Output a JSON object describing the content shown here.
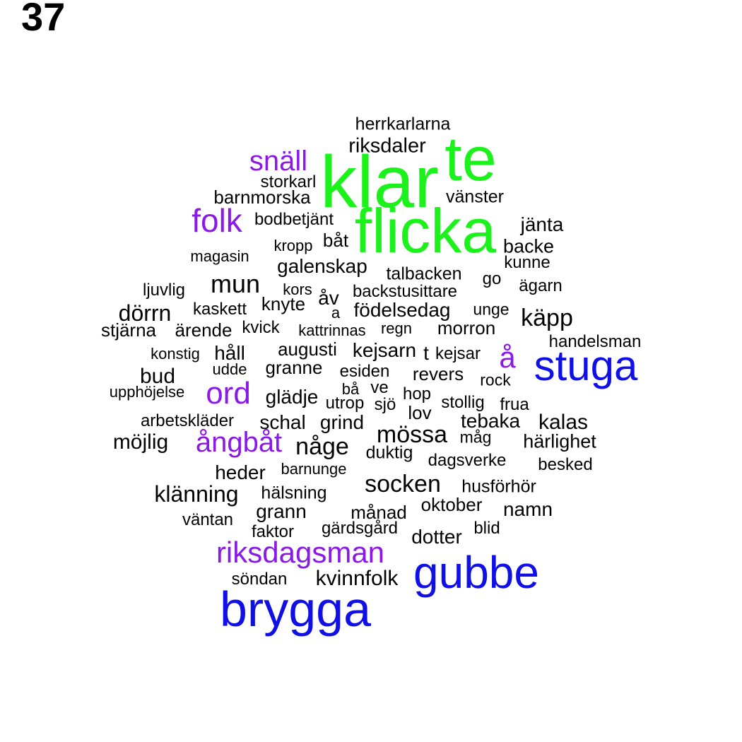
{
  "page_number": "37",
  "colors": {
    "black": "#000000",
    "purple": "#8A18E6",
    "green": "#1BF21B",
    "blue": "#1010E6"
  },
  "words": [
    {
      "text": "klar",
      "color": "green"
    },
    {
      "text": "flicka",
      "color": "green"
    },
    {
      "text": "te",
      "color": "green"
    },
    {
      "text": "brygga",
      "color": "blue"
    },
    {
      "text": "gubbe",
      "color": "blue"
    },
    {
      "text": "stuga",
      "color": "blue"
    },
    {
      "text": "riksdagsman",
      "color": "purple"
    },
    {
      "text": "ångbåt",
      "color": "purple"
    },
    {
      "text": "ord",
      "color": "purple"
    },
    {
      "text": "folk",
      "color": "purple"
    },
    {
      "text": "snäll",
      "color": "purple"
    },
    {
      "text": "å",
      "color": "purple"
    },
    {
      "text": "herrkarlarna",
      "color": "black"
    },
    {
      "text": "riksdaler",
      "color": "black"
    },
    {
      "text": "storkarl",
      "color": "black"
    },
    {
      "text": "barnmorska",
      "color": "black"
    },
    {
      "text": "vänster",
      "color": "black"
    },
    {
      "text": "bodbetjänt",
      "color": "black"
    },
    {
      "text": "jänta",
      "color": "black"
    },
    {
      "text": "båt",
      "color": "black"
    },
    {
      "text": "kropp",
      "color": "black"
    },
    {
      "text": "backe",
      "color": "black"
    },
    {
      "text": "magasin",
      "color": "black"
    },
    {
      "text": "kunne",
      "color": "black"
    },
    {
      "text": "galenskap",
      "color": "black"
    },
    {
      "text": "talbacken",
      "color": "black"
    },
    {
      "text": "go",
      "color": "black"
    },
    {
      "text": "mun",
      "color": "black"
    },
    {
      "text": "ägarn",
      "color": "black"
    },
    {
      "text": "ljuvlig",
      "color": "black"
    },
    {
      "text": "kors",
      "color": "black"
    },
    {
      "text": "backstusittare",
      "color": "black"
    },
    {
      "text": "åv",
      "color": "black"
    },
    {
      "text": "knyte",
      "color": "black"
    },
    {
      "text": "dörrn",
      "color": "black"
    },
    {
      "text": "kaskett",
      "color": "black"
    },
    {
      "text": "a",
      "color": "black"
    },
    {
      "text": "födelsedag",
      "color": "black"
    },
    {
      "text": "unge",
      "color": "black"
    },
    {
      "text": "käpp",
      "color": "black"
    },
    {
      "text": "stjärna",
      "color": "black"
    },
    {
      "text": "ärende",
      "color": "black"
    },
    {
      "text": "kvick",
      "color": "black"
    },
    {
      "text": "kattrinnas",
      "color": "black"
    },
    {
      "text": "regn",
      "color": "black"
    },
    {
      "text": "morron",
      "color": "black"
    },
    {
      "text": "handelsman",
      "color": "black"
    },
    {
      "text": "konstig",
      "color": "black"
    },
    {
      "text": "håll",
      "color": "black"
    },
    {
      "text": "augusti",
      "color": "black"
    },
    {
      "text": "kejsarn",
      "color": "black"
    },
    {
      "text": "t",
      "color": "black"
    },
    {
      "text": "kejsar",
      "color": "black"
    },
    {
      "text": "udde",
      "color": "black"
    },
    {
      "text": "granne",
      "color": "black"
    },
    {
      "text": "esiden",
      "color": "black"
    },
    {
      "text": "bud",
      "color": "black"
    },
    {
      "text": "revers",
      "color": "black"
    },
    {
      "text": "rock",
      "color": "black"
    },
    {
      "text": "upphöjelse",
      "color": "black"
    },
    {
      "text": "bå",
      "color": "black"
    },
    {
      "text": "ve",
      "color": "black"
    },
    {
      "text": "glädje",
      "color": "black"
    },
    {
      "text": "hop",
      "color": "black"
    },
    {
      "text": "utrop",
      "color": "black"
    },
    {
      "text": "sjö",
      "color": "black"
    },
    {
      "text": "stollig",
      "color": "black"
    },
    {
      "text": "frua",
      "color": "black"
    },
    {
      "text": "lov",
      "color": "black"
    },
    {
      "text": "arbetskläder",
      "color": "black"
    },
    {
      "text": "schal",
      "color": "black"
    },
    {
      "text": "grind",
      "color": "black"
    },
    {
      "text": "tebaka",
      "color": "black"
    },
    {
      "text": "kalas",
      "color": "black"
    },
    {
      "text": "mössa",
      "color": "black"
    },
    {
      "text": "möjlig",
      "color": "black"
    },
    {
      "text": "måg",
      "color": "black"
    },
    {
      "text": "härlighet",
      "color": "black"
    },
    {
      "text": "någe",
      "color": "black"
    },
    {
      "text": "duktig",
      "color": "black"
    },
    {
      "text": "dagsverke",
      "color": "black"
    },
    {
      "text": "besked",
      "color": "black"
    },
    {
      "text": "heder",
      "color": "black"
    },
    {
      "text": "barnunge",
      "color": "black"
    },
    {
      "text": "socken",
      "color": "black"
    },
    {
      "text": "husförhör",
      "color": "black"
    },
    {
      "text": "klänning",
      "color": "black"
    },
    {
      "text": "hälsning",
      "color": "black"
    },
    {
      "text": "oktober",
      "color": "black"
    },
    {
      "text": "grann",
      "color": "black"
    },
    {
      "text": "månad",
      "color": "black"
    },
    {
      "text": "namn",
      "color": "black"
    },
    {
      "text": "väntan",
      "color": "black"
    },
    {
      "text": "faktor",
      "color": "black"
    },
    {
      "text": "gärdsgård",
      "color": "black"
    },
    {
      "text": "blid",
      "color": "black"
    },
    {
      "text": "dotter",
      "color": "black"
    },
    {
      "text": "söndan",
      "color": "black"
    },
    {
      "text": "kvinnfolk",
      "color": "black"
    }
  ]
}
